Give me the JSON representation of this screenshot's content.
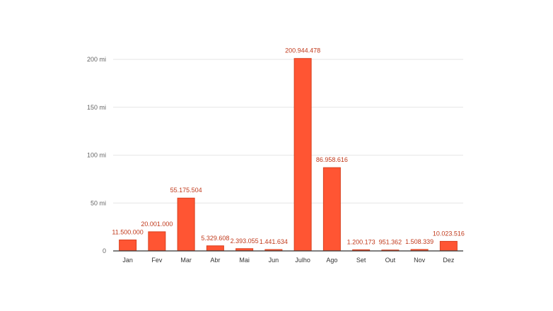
{
  "chart_data": {
    "type": "bar",
    "title": "",
    "xlabel": "",
    "ylabel": "",
    "categories": [
      "Jan",
      "Fev",
      "Mar",
      "Abr",
      "Mai",
      "Jun",
      "Julho",
      "Ago",
      "Set",
      "Out",
      "Nov",
      "Dez"
    ],
    "values": [
      11500000,
      20001000,
      55175504,
      5329608,
      2393055,
      1441634,
      200944478,
      86958616,
      1200173,
      951362,
      1508339,
      10023516
    ],
    "value_labels": [
      "11.500.000",
      "20.001.000",
      "55.175.504",
      "5.329.608",
      "2.393.055",
      "1.441.634",
      "200.944.478",
      "86.958.616",
      "1.200.173",
      "951.362",
      "1.508.339",
      "10.023.516"
    ],
    "ylim": [
      0,
      200000000
    ],
    "yticks": [
      0,
      50000000,
      100000000,
      150000000,
      200000000
    ],
    "ytick_labels": [
      "0",
      "50 mi",
      "100 mi",
      "150 mi",
      "200 mi"
    ],
    "grid": true,
    "legend": "none",
    "colors": {
      "bar": "#ff5533",
      "bar_stroke": "#d8401f",
      "label": "#c0391b"
    }
  }
}
